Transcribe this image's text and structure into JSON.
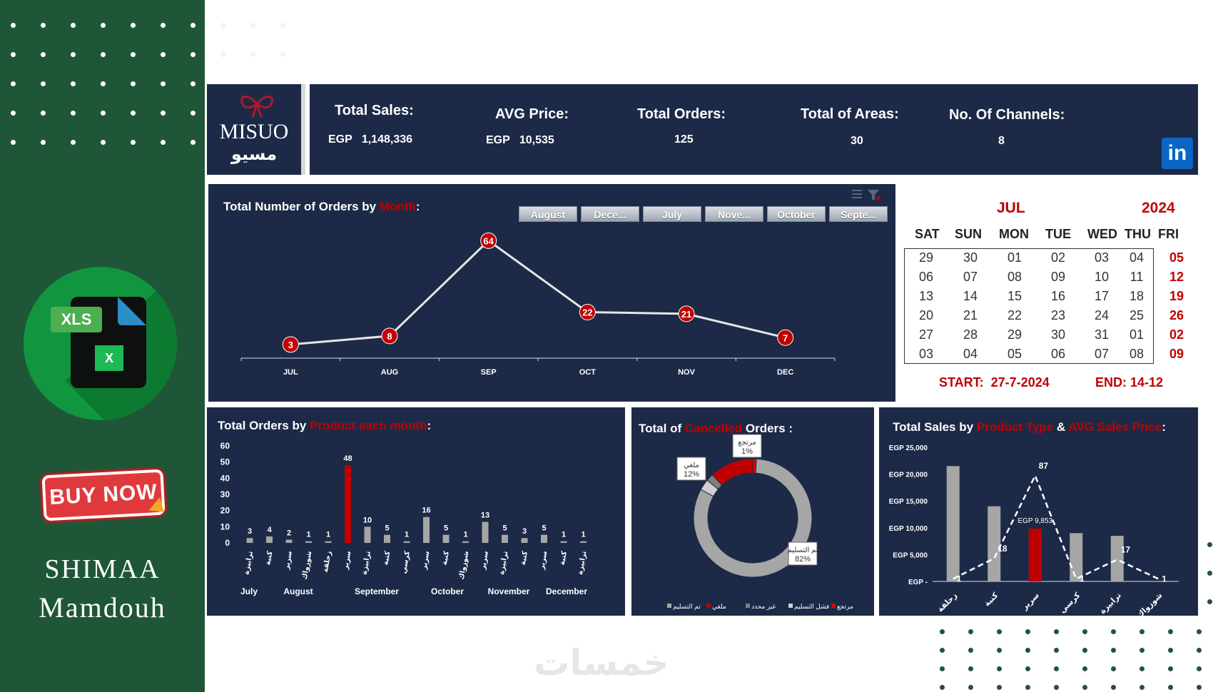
{
  "brand": {
    "logo_text": "MISUO",
    "logo_ar": "مسيو"
  },
  "kpis": [
    {
      "label": "Total Sales:",
      "value": "EGP   1,148,336"
    },
    {
      "label": "AVG Price:",
      "value": "EGP   10,535"
    },
    {
      "label": "Total Orders:",
      "value": "125"
    },
    {
      "label": "Total of Areas:",
      "value": "30"
    },
    {
      "label": "No. Of Channels:",
      "value": "8"
    }
  ],
  "linkedin_label": "in",
  "sidebar": {
    "xls_label": "XLS",
    "xls_small": "X",
    "buy_now": "BUY NOW",
    "author_line1": "SHIMAA",
    "author_line2": "Mamdouh"
  },
  "watermark": "خمسات",
  "chart_data": [
    {
      "type": "line",
      "title_prefix": "Total Number of Orders by ",
      "title_highlight": "Month",
      "title_suffix": ":",
      "categories": [
        "JUL",
        "AUG",
        "SEP",
        "OCT",
        "NOV",
        "DEC"
      ],
      "values": [
        3,
        8,
        64,
        22,
        21,
        7
      ],
      "ylim": [
        0,
        70
      ],
      "slicer": [
        "August",
        "Dece...",
        "July",
        "Nove...",
        "October",
        "Septe..."
      ]
    },
    {
      "type": "bar",
      "title_prefix": "Total Orders by ",
      "title_highlight": "Product each month",
      "title_suffix": ":",
      "yticks": [
        "60",
        "50",
        "40",
        "30",
        "20",
        "10",
        "0"
      ],
      "ylim": [
        0,
        60
      ],
      "values": [
        3,
        4,
        2,
        1,
        1,
        48,
        10,
        5,
        1,
        16,
        5,
        1,
        13,
        5,
        3,
        5,
        1,
        1
      ],
      "bar_labels": [
        "ترابيزة",
        "كنبة",
        "سرير",
        "شوزواك",
        "زحلقة",
        "سرير",
        "ترابيزة",
        "كنبة",
        "كرسي",
        "سرير",
        "كنبة",
        "شوزواك",
        "سرير",
        "ترابيزة",
        "كنبة",
        "سرير",
        "كنبة",
        "ترابيزة"
      ],
      "highlight_index": 5,
      "months": [
        "July",
        "August",
        "September",
        "October",
        "November",
        "December"
      ]
    },
    {
      "type": "pie",
      "title_prefix": "Total of ",
      "title_highlight": "Cancelled",
      "title_suffix": " Orders :",
      "slices": [
        {
          "name": "تم التسليم",
          "value": 82,
          "label": "تم التسليم\n82%"
        },
        {
          "name": "ملغي",
          "value": 12,
          "label": "ملغي\n12%"
        },
        {
          "name": "غير محدد",
          "value": 2,
          "label": ""
        },
        {
          "name": "فشل التسليم",
          "value": 3,
          "label": ""
        },
        {
          "name": "مرتجع",
          "value": 1,
          "label": "مرتجع\n1%"
        }
      ],
      "legend": [
        "تم التسليم",
        "ملغي",
        "غير محدد",
        "فشل التسليم",
        "مرتجع"
      ]
    },
    {
      "type": "bar",
      "title_prefix": "Total Sales by ",
      "title_highlight": "Product Type",
      "title_mid": " & ",
      "title_highlight2": "AVG Sales Price",
      "title_suffix": ":",
      "yticks": [
        "EGP 25,000",
        "EGP 20,000",
        "EGP 15,000",
        "EGP 10,000",
        "EGP 5,000",
        "EGP -"
      ],
      "ylim": [
        0,
        25000
      ],
      "categories": [
        "زحلقة",
        "كنبة",
        "سرير",
        "كرسي",
        "ترابيزة",
        "شوزواك"
      ],
      "bar_values": [
        21500,
        14000,
        9853,
        9000,
        8500,
        0
      ],
      "bar_labels": [
        "",
        "",
        "EGP 9,853",
        "",
        "",
        ""
      ],
      "line_values": [
        1,
        18,
        87,
        1,
        17,
        1
      ],
      "line_ylim": [
        0,
        100
      ],
      "highlight_index": 2
    }
  ],
  "calendar": {
    "month": "JUL",
    "year": "2024",
    "days": [
      "SAT",
      "SUN",
      "MON",
      "TUE",
      "WED",
      "THU",
      "FRI"
    ],
    "weeks": [
      [
        "29",
        "30",
        "01",
        "02",
        "03",
        "04",
        "05"
      ],
      [
        "06",
        "07",
        "08",
        "09",
        "10",
        "11",
        "12"
      ],
      [
        "13",
        "14",
        "15",
        "16",
        "17",
        "18",
        "19"
      ],
      [
        "20",
        "21",
        "22",
        "23",
        "24",
        "25",
        "26"
      ],
      [
        "27",
        "28",
        "29",
        "30",
        "31",
        "01",
        "02"
      ],
      [
        "03",
        "04",
        "05",
        "06",
        "07",
        "08",
        "09"
      ]
    ],
    "start": "START:  27-7-2024",
    "end": "END: 14-12"
  }
}
